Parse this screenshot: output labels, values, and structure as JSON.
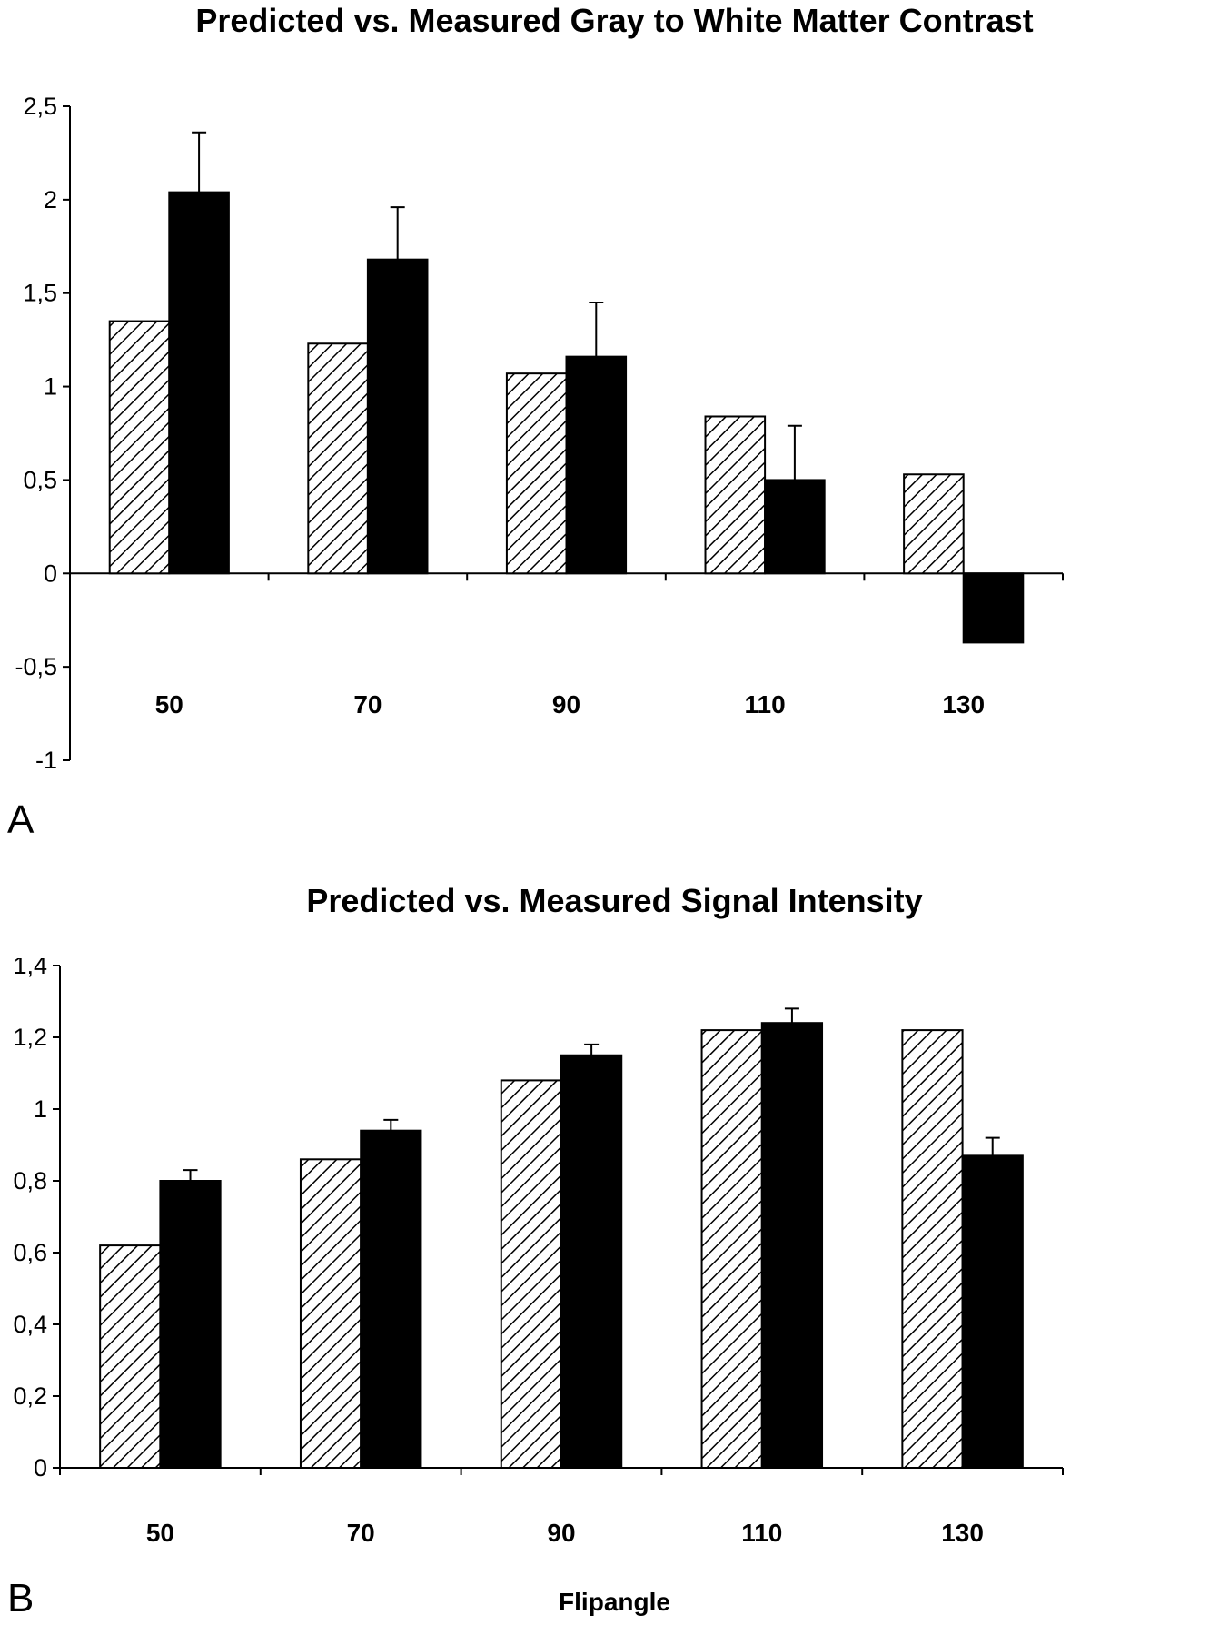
{
  "chart_data": [
    {
      "type": "bar",
      "panel": "A",
      "title": "Predicted vs. Measured Gray to White Matter Contrast",
      "xlabel": "",
      "ylabel": "",
      "categories": [
        "50",
        "70",
        "90",
        "110",
        "130"
      ],
      "ylim": [
        -1,
        2.5
      ],
      "yticks": [
        "2,5",
        "2",
        "1,5",
        "1",
        "0,5",
        "0",
        "-0,5",
        "-1"
      ],
      "ytick_values": [
        2.5,
        2,
        1.5,
        1,
        0.5,
        0,
        -0.5,
        -1
      ],
      "series": [
        {
          "pattern": "hatched",
          "values": [
            1.35,
            1.23,
            1.07,
            0.84,
            0.53
          ],
          "error": [
            null,
            null,
            null,
            null,
            null
          ]
        },
        {
          "pattern": "solid",
          "values": [
            2.04,
            1.68,
            1.16,
            0.5,
            -0.37
          ],
          "error": [
            0.32,
            0.28,
            0.29,
            0.29,
            null
          ]
        }
      ],
      "grid": false,
      "legend": "none"
    },
    {
      "type": "bar",
      "panel": "B",
      "title": "Predicted vs. Measured Signal Intensity",
      "xlabel": "Flipangle",
      "ylabel": "",
      "categories": [
        "50",
        "70",
        "90",
        "110",
        "130"
      ],
      "ylim": [
        0,
        1.4
      ],
      "yticks": [
        "1,4",
        "1,2",
        "1",
        "0,8",
        "0,6",
        "0,4",
        "0,2",
        "0"
      ],
      "ytick_values": [
        1.4,
        1.2,
        1,
        0.8,
        0.6,
        0.4,
        0.2,
        0
      ],
      "series": [
        {
          "pattern": "hatched",
          "values": [
            0.62,
            0.86,
            1.08,
            1.22,
            1.22
          ],
          "error": [
            null,
            null,
            null,
            null,
            null
          ]
        },
        {
          "pattern": "solid",
          "values": [
            0.8,
            0.94,
            1.15,
            1.24,
            0.87
          ],
          "error": [
            0.03,
            0.03,
            0.03,
            0.04,
            0.05
          ]
        }
      ],
      "grid": false,
      "legend": "none"
    }
  ],
  "panels": {
    "a": {
      "title": "Predicted vs. Measured Gray to White Matter Contrast",
      "letter": "A"
    },
    "b": {
      "title": "Predicted vs. Measured Signal Intensity",
      "letter": "B",
      "xlabel": "Flipangle"
    }
  }
}
